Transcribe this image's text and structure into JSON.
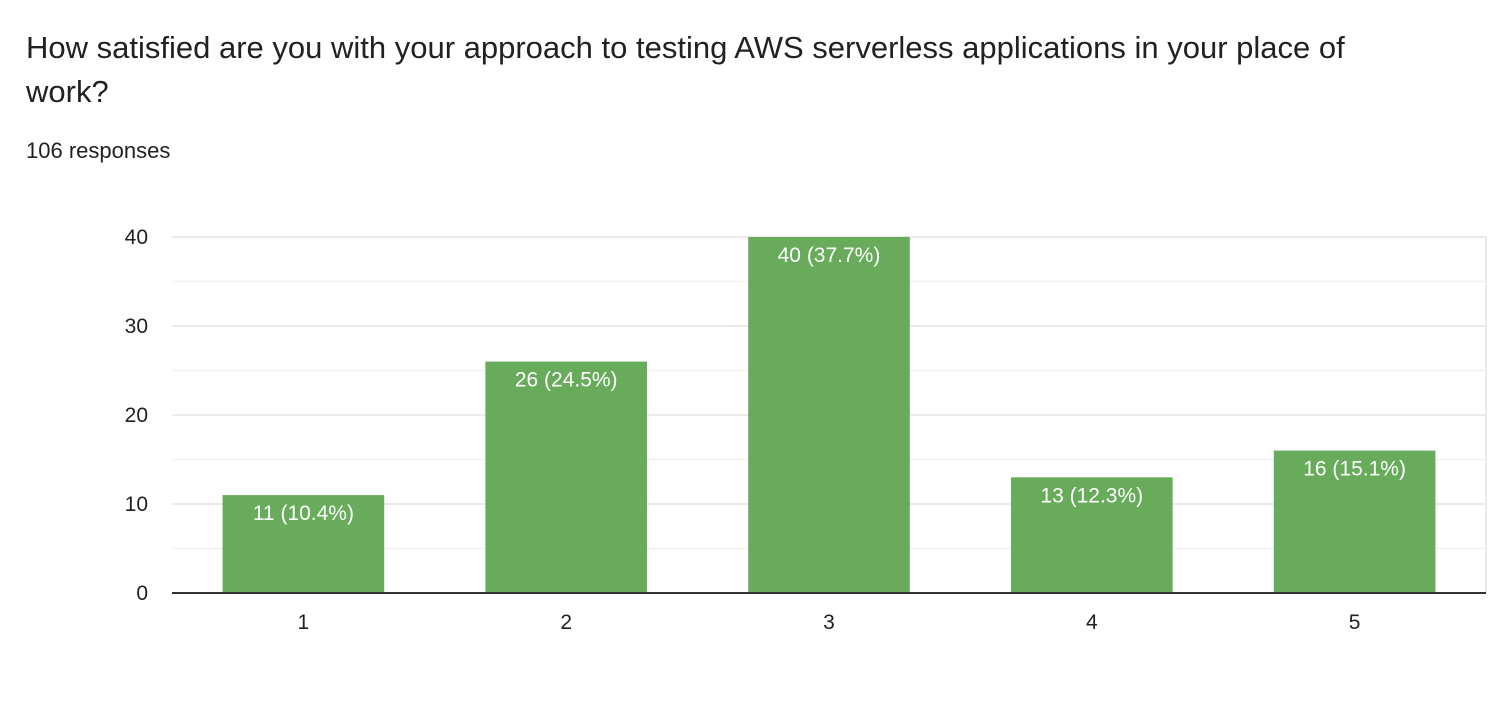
{
  "header": {
    "title": "How satisfied are you with your approach to testing AWS serverless applications in your place of work?",
    "responses": "106 responses"
  },
  "chart_data": {
    "type": "bar",
    "categories": [
      "1",
      "2",
      "3",
      "4",
      "5"
    ],
    "values": [
      11,
      26,
      40,
      13,
      16
    ],
    "data_labels": [
      "11 (10.4%)",
      "26 (24.5%)",
      "40 (37.7%)",
      "13 (12.3%)",
      "16 (15.1%)"
    ],
    "yticks": [
      0,
      10,
      20,
      30,
      40
    ],
    "ylim": [
      0,
      40
    ],
    "grid": true,
    "legend": "none",
    "colors": {
      "bar": "#67ab5b",
      "grid_major": "#e3e3e3",
      "grid_minor": "#f1f1f1",
      "axis": "#333333"
    }
  }
}
